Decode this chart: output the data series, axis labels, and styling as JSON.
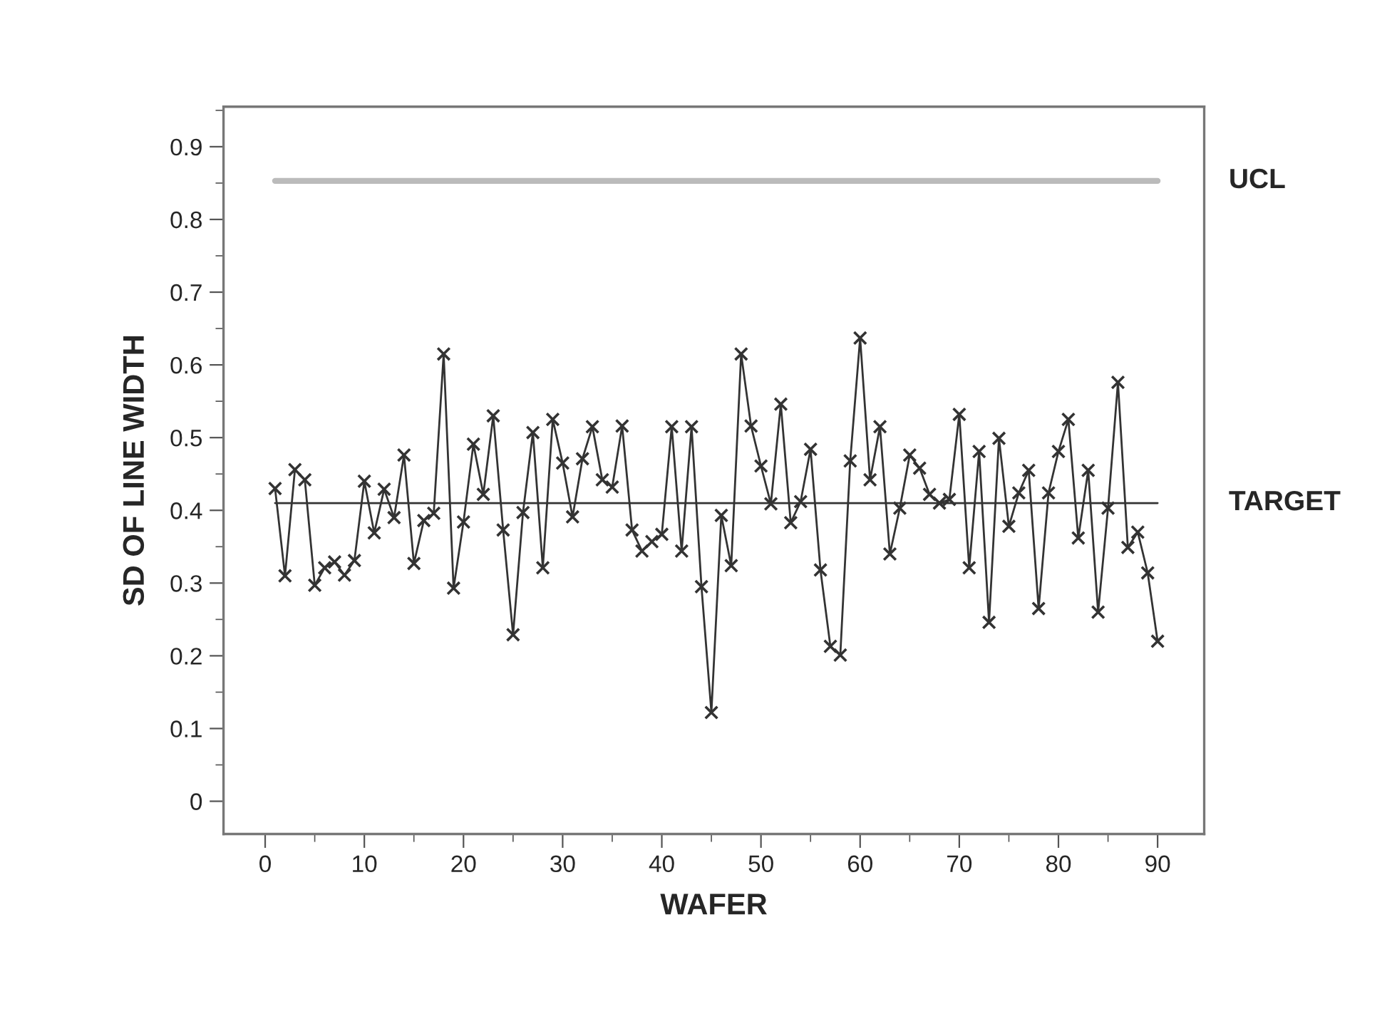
{
  "chart_data": {
    "type": "line",
    "xlabel": "WAFER",
    "ylabel": "SD OF LINE WIDTH",
    "x": [
      1,
      2,
      3,
      4,
      5,
      6,
      7,
      8,
      9,
      10,
      11,
      12,
      13,
      14,
      15,
      16,
      17,
      18,
      19,
      20,
      21,
      22,
      23,
      24,
      25,
      26,
      27,
      28,
      29,
      30,
      31,
      32,
      33,
      34,
      35,
      36,
      37,
      38,
      39,
      40,
      41,
      42,
      43,
      44,
      45,
      46,
      47,
      48,
      49,
      50,
      51,
      52,
      53,
      54,
      55,
      56,
      57,
      58,
      59,
      60,
      61,
      62,
      63,
      64,
      65,
      66,
      67,
      68,
      69,
      70,
      71,
      72,
      73,
      74,
      75,
      76,
      77,
      78,
      79,
      80,
      81,
      82,
      83,
      84,
      85,
      86,
      87,
      88,
      89,
      90
    ],
    "series": [
      {
        "color": "#333333",
        "values": [
          0.43,
          0.31,
          0.456,
          0.442,
          0.297,
          0.321,
          0.329,
          0.311,
          0.331,
          0.44,
          0.369,
          0.429,
          0.39,
          0.476,
          0.327,
          0.386,
          0.396,
          0.615,
          0.293,
          0.384,
          0.491,
          0.422,
          0.53,
          0.373,
          0.229,
          0.397,
          0.507,
          0.321,
          0.525,
          0.465,
          0.391,
          0.471,
          0.515,
          0.442,
          0.432,
          0.516,
          0.373,
          0.344,
          0.357,
          0.367,
          0.515,
          0.344,
          0.515,
          0.295,
          0.122,
          0.393,
          0.324,
          0.615,
          0.516,
          0.461,
          0.409,
          0.546,
          0.383,
          0.412,
          0.484,
          0.318,
          0.213,
          0.201,
          0.468,
          0.637,
          0.442,
          0.515,
          0.34,
          0.403,
          0.476,
          0.458,
          0.422,
          0.41,
          0.415,
          0.532,
          0.321,
          0.481,
          0.246,
          0.499,
          0.378,
          0.424,
          0.455,
          0.265,
          0.424,
          0.481,
          0.525,
          0.362,
          0.455,
          0.26,
          0.403,
          0.576,
          0.349,
          0.37,
          0.314,
          0.22
        ]
      }
    ],
    "marker": "cross",
    "line_style": "solid",
    "ref_lines": [
      {
        "axis": "y",
        "value": 0.853,
        "label": "UCL",
        "color": "#bbbbbb"
      },
      {
        "axis": "y",
        "value": 0.41,
        "label": "TARGET",
        "color": "#333333"
      }
    ],
    "xlim": [
      -4.2,
      94.7
    ],
    "xticks": [
      0,
      10,
      20,
      30,
      40,
      50,
      60,
      70,
      80,
      90
    ],
    "ylim": [
      -0.045,
      0.955
    ],
    "yticks": [
      0,
      0.1,
      0.2,
      0.3,
      0.4,
      0.5,
      0.6,
      0.7,
      0.8,
      0.9
    ],
    "grid": false,
    "legend": false
  }
}
